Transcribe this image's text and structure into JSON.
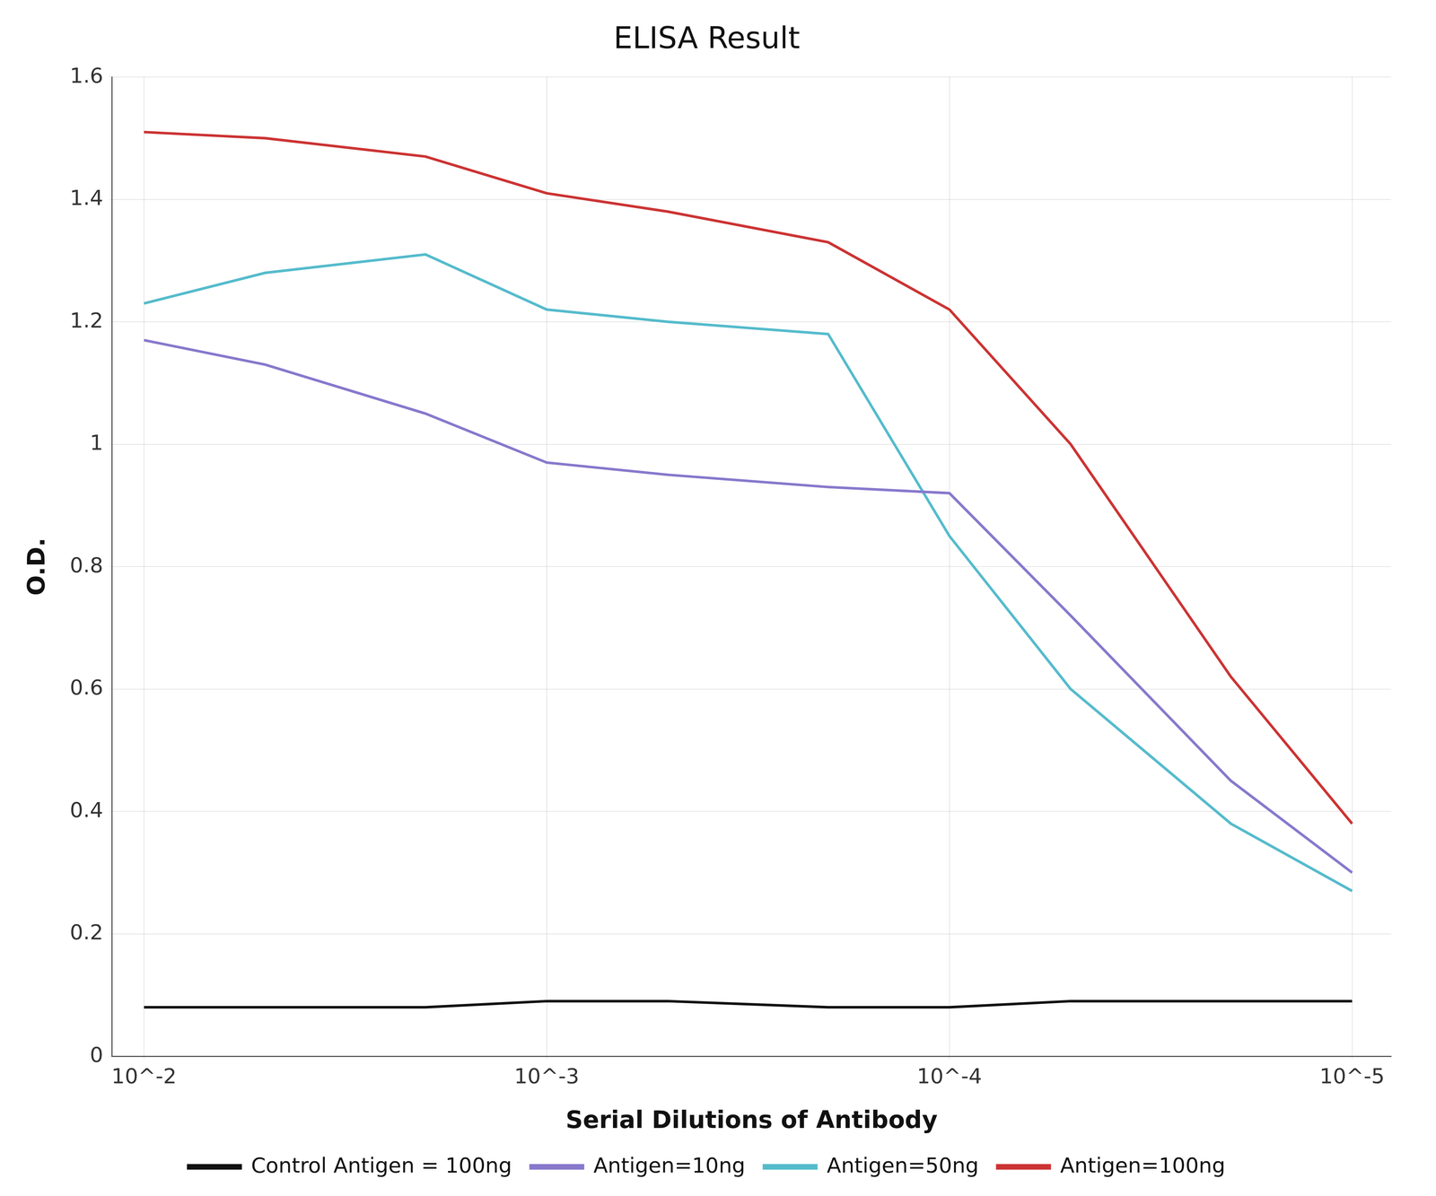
{
  "chart_data": {
    "type": "line",
    "title": "ELISA Result",
    "x_label": "Serial Dilutions of Antibody",
    "y_label": "O.D.",
    "log": "x",
    "grid": true,
    "legend": "bottom",
    "x": [
      0.01,
      0.005,
      0.002,
      0.001,
      0.0005,
      0.0002,
      0.0001,
      5e-05,
      2e-05,
      1e-05
    ],
    "xlim": [
      0.012,
      8e-06
    ],
    "xticks": [
      {
        "value": 0.01,
        "label": "10^-2"
      },
      {
        "value": 0.001,
        "label": "10^-3"
      },
      {
        "value": 0.0001,
        "label": "10^-4"
      },
      {
        "value": 1e-05,
        "label": "10^-5"
      }
    ],
    "ylim": [
      0,
      1.6
    ],
    "yticks": [
      0,
      0.2,
      0.4,
      0.6,
      0.8,
      1,
      1.2,
      1.4,
      1.6
    ],
    "series": [
      {
        "name": "Control Antigen = 100ng",
        "color": "#111111",
        "values": [
          0.08,
          0.08,
          0.08,
          0.09,
          0.09,
          0.08,
          0.08,
          0.09,
          0.09,
          0.09
        ]
      },
      {
        "name": "Antigen=10ng",
        "color": "#8878cc",
        "values": [
          1.17,
          1.13,
          1.05,
          0.97,
          0.95,
          0.93,
          0.92,
          0.72,
          0.45,
          0.3
        ]
      },
      {
        "name": "Antigen=50ng",
        "color": "#55bbcc",
        "values": [
          1.23,
          1.28,
          1.31,
          1.22,
          1.2,
          1.18,
          0.85,
          0.6,
          0.38,
          0.27
        ]
      },
      {
        "name": "Antigen=100ng",
        "color": "#cc3333",
        "values": [
          1.51,
          1.5,
          1.47,
          1.41,
          1.38,
          1.33,
          1.22,
          1.0,
          0.62,
          0.38
        ]
      }
    ]
  }
}
